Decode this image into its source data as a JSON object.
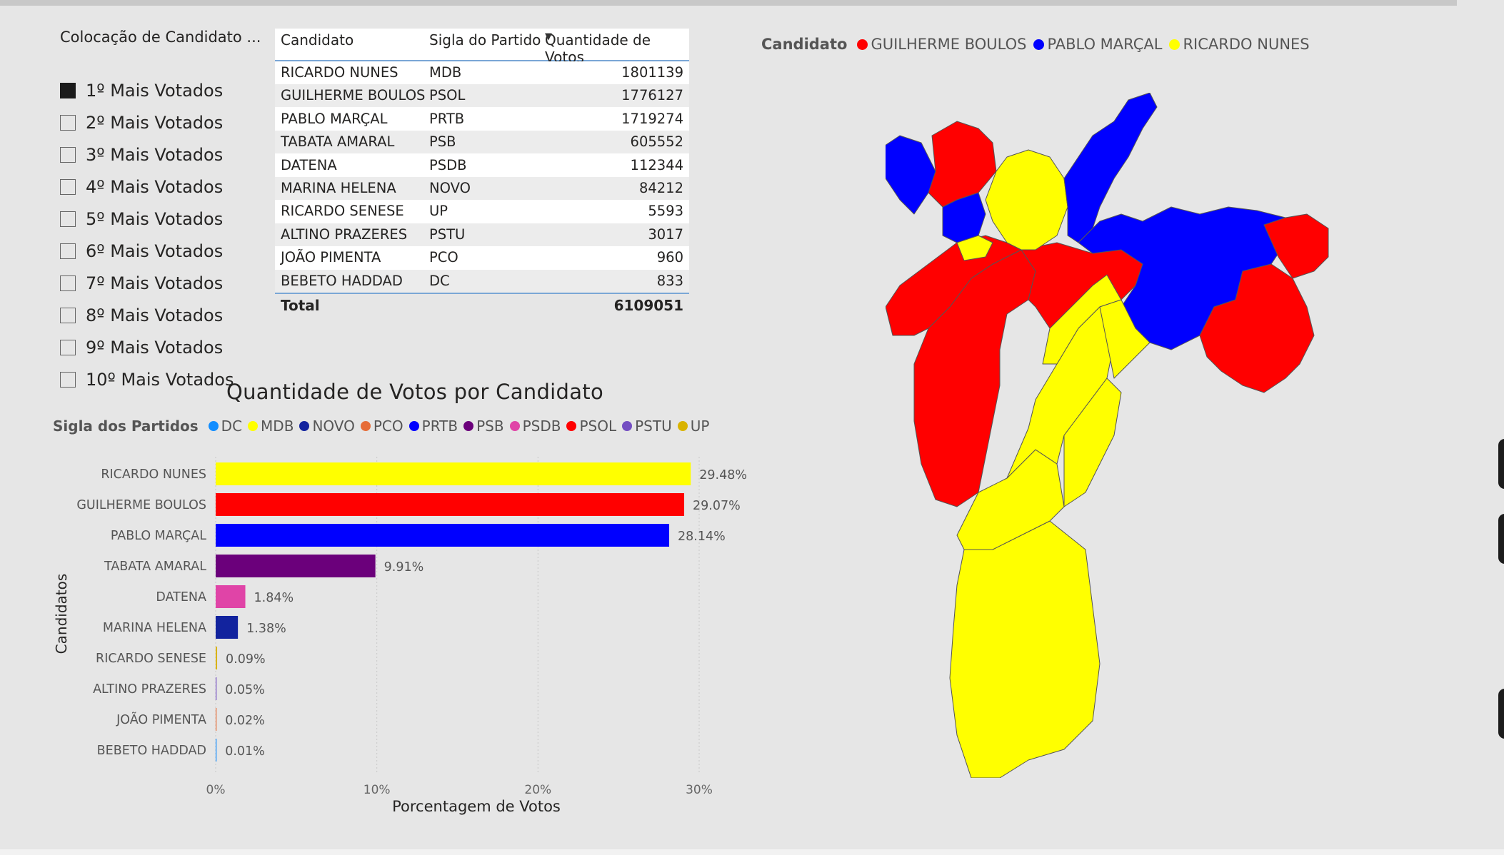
{
  "slicer": {
    "title": "Colocação de Candidato ...",
    "items": [
      {
        "label": "1º Mais Votados",
        "selected": true
      },
      {
        "label": "2º Mais Votados",
        "selected": false
      },
      {
        "label": "3º Mais Votados",
        "selected": false
      },
      {
        "label": "4º Mais Votados",
        "selected": false
      },
      {
        "label": "5º Mais Votados",
        "selected": false
      },
      {
        "label": "6º Mais Votados",
        "selected": false
      },
      {
        "label": "7º Mais Votados",
        "selected": false
      },
      {
        "label": "8º Mais Votados",
        "selected": false
      },
      {
        "label": "9º Mais Votados",
        "selected": false
      },
      {
        "label": "10º Mais Votados",
        "selected": false
      }
    ]
  },
  "table": {
    "headers": [
      "Candidato",
      "Sigla do Partido",
      "Quantidade de Votos"
    ],
    "sort_icon": "sort-descending-icon",
    "rows": [
      [
        "RICARDO NUNES",
        "MDB",
        "1801139"
      ],
      [
        "GUILHERME BOULOS",
        "PSOL",
        "1776127"
      ],
      [
        "PABLO MARÇAL",
        "PRTB",
        "1719274"
      ],
      [
        "TABATA AMARAL",
        "PSB",
        "605552"
      ],
      [
        "DATENA",
        "PSDB",
        "112344"
      ],
      [
        "MARINA HELENA",
        "NOVO",
        "84212"
      ],
      [
        "RICARDO SENESE",
        "UP",
        "5593"
      ],
      [
        "ALTINO PRAZERES",
        "PSTU",
        "3017"
      ],
      [
        "JOÃO PIMENTA",
        "PCO",
        "960"
      ],
      [
        "BEBETO HADDAD",
        "DC",
        "833"
      ]
    ],
    "total_label": "Total",
    "total_value": "6109051"
  },
  "chart_legend": {
    "title": "Sigla dos Partidos",
    "items": [
      {
        "label": "DC",
        "color": "#118dff"
      },
      {
        "label": "MDB",
        "color": "#ffff00"
      },
      {
        "label": "NOVO",
        "color": "#12239e"
      },
      {
        "label": "PCO",
        "color": "#e66c37"
      },
      {
        "label": "PRTB",
        "color": "#0000ff"
      },
      {
        "label": "PSB",
        "color": "#6b007b"
      },
      {
        "label": "PSDB",
        "color": "#e044a7"
      },
      {
        "label": "PSOL",
        "color": "#ff0000"
      },
      {
        "label": "PSTU",
        "color": "#744ec2"
      },
      {
        "label": "UP",
        "color": "#d9b300"
      }
    ]
  },
  "chart_data": {
    "type": "bar",
    "orientation": "horizontal",
    "title": "Quantidade de Votos por Candidato",
    "xlabel": "Porcentagem de Votos",
    "ylabel": "Candidatos",
    "xlim": [
      0,
      30
    ],
    "x_ticks": [
      "0%",
      "10%",
      "20%",
      "30%"
    ],
    "grid": true,
    "legend_position": "top-left",
    "categories": [
      "RICARDO NUNES",
      "GUILHERME BOULOS",
      "PABLO MARÇAL",
      "TABATA AMARAL",
      "DATENA",
      "MARINA HELENA",
      "RICARDO SENESE",
      "ALTINO PRAZERES",
      "JOÃO PIMENTA",
      "BEBETO HADDAD"
    ],
    "values": [
      29.48,
      29.07,
      28.14,
      9.91,
      1.84,
      1.38,
      0.09,
      0.05,
      0.02,
      0.01
    ],
    "labels": [
      "29.48%",
      "29.07%",
      "28.14%",
      "9.91%",
      "1.84%",
      "1.38%",
      "0.09%",
      "0.05%",
      "0.02%",
      "0.01%"
    ],
    "colors": [
      "#ffff00",
      "#ff0000",
      "#0000ff",
      "#6b007b",
      "#e044a7",
      "#12239e",
      "#d9b300",
      "#744ec2",
      "#e66c37",
      "#118dff"
    ]
  },
  "map": {
    "legend_title": "Candidato",
    "legend_items": [
      {
        "label": "GUILHERME BOULOS",
        "color": "#ff0000"
      },
      {
        "label": "PABLO MARÇAL",
        "color": "#0000ff"
      },
      {
        "label": "RICARDO NUNES",
        "color": "#ffff00"
      }
    ]
  }
}
